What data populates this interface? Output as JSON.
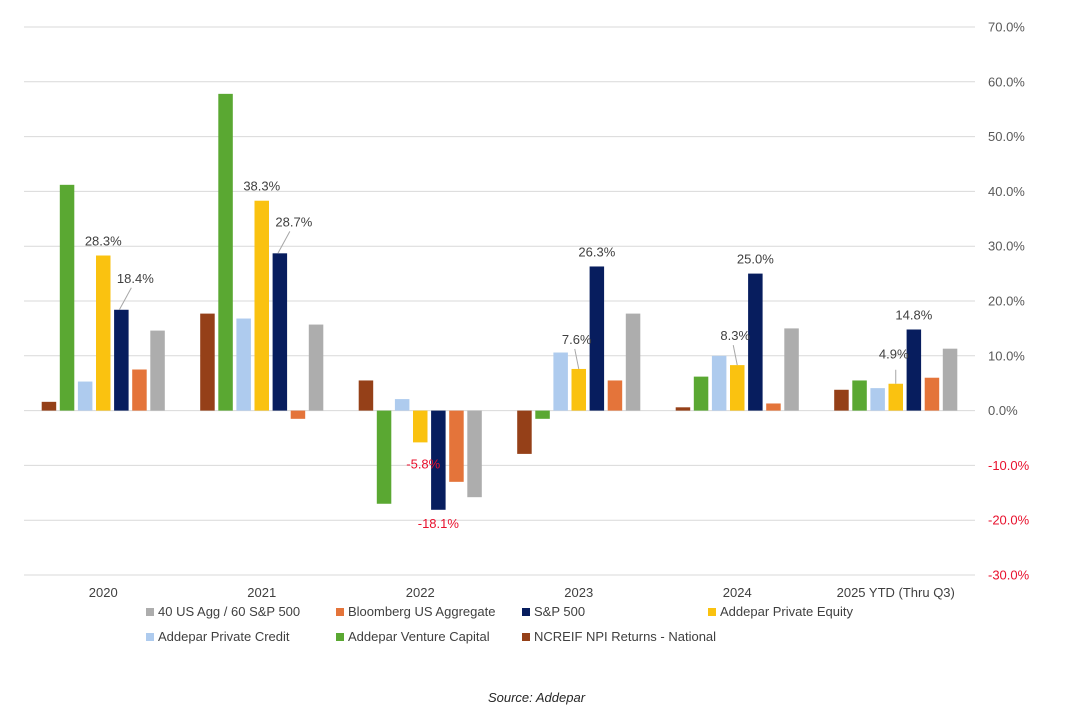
{
  "chart_data": {
    "type": "bar",
    "title": "",
    "xlabel": "",
    "ylabel": "",
    "ylim": [
      -30,
      70
    ],
    "ytick_step": 10,
    "yticks": [
      "70.0%",
      "60.0%",
      "50.0%",
      "40.0%",
      "30.0%",
      "20.0%",
      "10.0%",
      "0.0%",
      "-10.0%",
      "-20.0%",
      "-30.0%"
    ],
    "yaxis_position": "right",
    "grid": true,
    "legend_position": "bottom",
    "categories": [
      "2020",
      "2021",
      "2022",
      "2023",
      "2024",
      "2025 YTD (Thru Q3)"
    ],
    "series": [
      {
        "name": "NCREIF NPI Returns - National",
        "color": "#954018",
        "values": [
          1.6,
          17.7,
          5.5,
          -7.9,
          0.6,
          3.8
        ]
      },
      {
        "name": "Addepar Venture Capital",
        "color": "#5aa832",
        "values": [
          41.2,
          57.8,
          -17.0,
          -1.5,
          6.2,
          5.5
        ]
      },
      {
        "name": "Addepar Private Credit",
        "color": "#aecbee",
        "values": [
          5.3,
          16.8,
          2.1,
          10.6,
          10.0,
          4.1
        ]
      },
      {
        "name": "Addepar Private Equity",
        "color": "#fac210",
        "values": [
          28.3,
          38.3,
          -5.8,
          7.6,
          8.3,
          4.9
        ],
        "labels": [
          "28.3%",
          "38.3%",
          "-5.8%",
          "7.6%",
          "8.3%",
          "4.9%"
        ]
      },
      {
        "name": "S&P 500",
        "color": "#071d5e",
        "values": [
          18.4,
          28.7,
          -18.1,
          26.3,
          25.0,
          14.8
        ],
        "labels": [
          "18.4%",
          "28.7%",
          "-18.1%",
          "26.3%",
          "25.0%",
          "14.8%"
        ]
      },
      {
        "name": "Bloomberg US Aggregate",
        "color": "#e4743a",
        "values": [
          7.5,
          -1.5,
          -13.0,
          5.5,
          1.3,
          6.0
        ]
      },
      {
        "name": "40 US Agg / 60 S&P 500",
        "color": "#adadad",
        "values": [
          14.6,
          15.7,
          -15.8,
          17.7,
          15.0,
          11.3
        ]
      }
    ],
    "legend_order": [
      "40 US Agg / 60 S&P 500",
      "Bloomberg US Aggregate",
      "S&P 500",
      "Addepar Private Equity",
      "Addepar Private Credit",
      "Addepar Venture Capital",
      "NCREIF NPI Returns - National"
    ]
  },
  "source": "Source: Addepar"
}
